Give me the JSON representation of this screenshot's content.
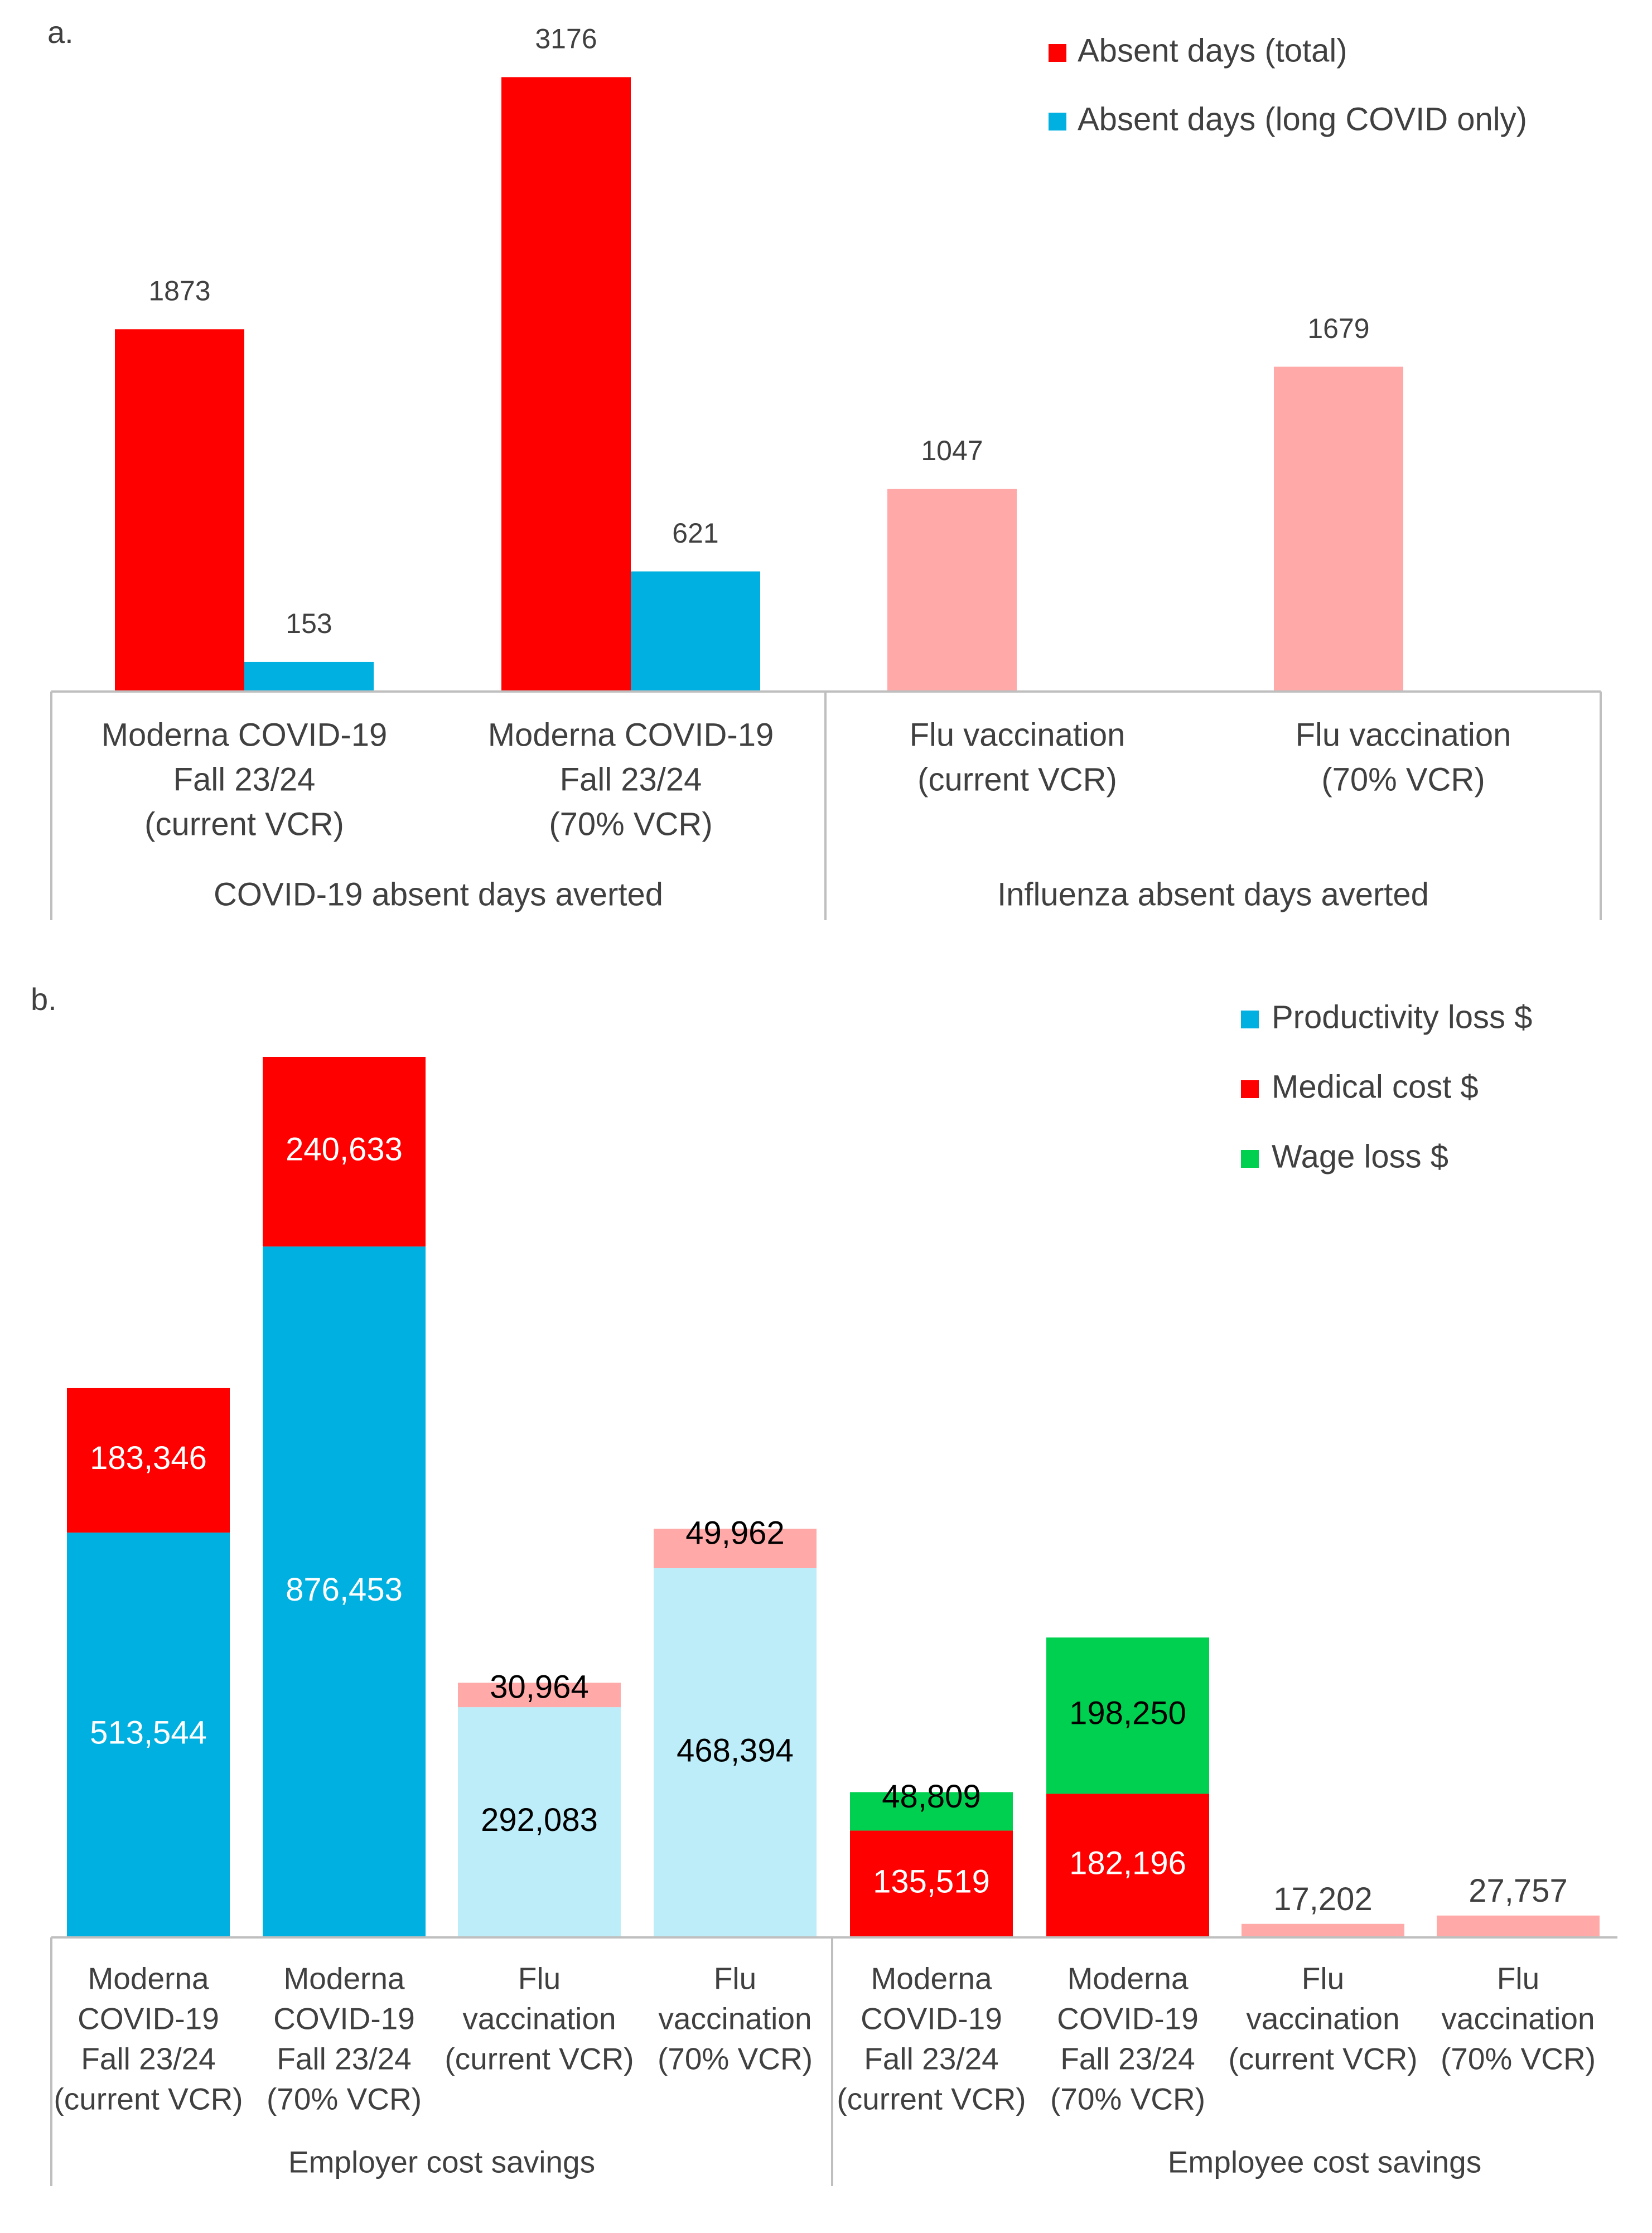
{
  "colors": {
    "red": "#FF0000",
    "blue": "#00B0E0",
    "pink": "#FFA9A9",
    "lightblue": "#BDEDF9",
    "green": "#00D050",
    "axis": "#BFBFBF",
    "text": "#404040",
    "white": "#FFFFFF",
    "black": "#000000"
  },
  "chart_data": [
    {
      "panel_label": "a.",
      "type": "bar",
      "title": "",
      "legend": [
        {
          "label": "Absent days (total)",
          "color": "#FF0000"
        },
        {
          "label": "Absent days (long COVID only)",
          "color": "#00B0E0"
        }
      ],
      "legend_position": "top-right",
      "groups": [
        {
          "label": "COVID-19 absent days averted",
          "categories": [
            {
              "label_lines": [
                "Moderna COVID-19",
                "Fall 23/24",
                "(current VCR)"
              ],
              "bars": [
                {
                  "series": "Absent days (total)",
                  "value": 1873,
                  "label": "1873",
                  "color": "#FF0000"
                },
                {
                  "series": "Absent days (long COVID only)",
                  "value": 153,
                  "label": "153",
                  "color": "#00B0E0"
                }
              ]
            },
            {
              "label_lines": [
                "Moderna COVID-19",
                "Fall 23/24",
                "(70% VCR)"
              ],
              "bars": [
                {
                  "series": "Absent days (total)",
                  "value": 3176,
                  "label": "3176",
                  "color": "#FF0000"
                },
                {
                  "series": "Absent days (long COVID only)",
                  "value": 621,
                  "label": "621",
                  "color": "#00B0E0"
                }
              ]
            }
          ]
        },
        {
          "label": "Influenza absent days averted",
          "categories": [
            {
              "label_lines": [
                "Flu vaccination",
                "(current VCR)"
              ],
              "bars": [
                {
                  "series": "Absent days (total)",
                  "value": 1047,
                  "label": "1047",
                  "color": "#FFA9A9"
                }
              ]
            },
            {
              "label_lines": [
                "Flu vaccination",
                "(70% VCR)"
              ],
              "bars": [
                {
                  "series": "Absent days (total)",
                  "value": 1679,
                  "label": "1679",
                  "color": "#FFA9A9"
                }
              ]
            }
          ]
        }
      ],
      "ylim": [
        0,
        3200
      ],
      "grid": false
    },
    {
      "panel_label": "b.",
      "type": "bar",
      "stacked": true,
      "title": "",
      "legend": [
        {
          "label": "Productivity loss $",
          "color": "#00B0E0"
        },
        {
          "label": "Medical cost $",
          "color": "#FF0000"
        },
        {
          "label": "Wage loss $",
          "color": "#00D050"
        }
      ],
      "legend_position": "top-right",
      "groups": [
        {
          "label": "Employer cost savings",
          "categories": [
            {
              "label_lines": [
                "Moderna",
                "COVID-19",
                "Fall 23/24",
                "(current VCR)"
              ],
              "segments": [
                {
                  "series": "Productivity loss $",
                  "value": 513544,
                  "label": "513,544",
                  "color": "#00B0E0",
                  "label_color": "#FFFFFF",
                  "label_pos": "inside"
                },
                {
                  "series": "Medical cost $",
                  "value": 183346,
                  "label": "183,346",
                  "color": "#FF0000",
                  "label_color": "#FFFFFF",
                  "label_pos": "inside"
                }
              ]
            },
            {
              "label_lines": [
                "Moderna",
                "COVID-19",
                "Fall 23/24",
                "(70% VCR)"
              ],
              "segments": [
                {
                  "series": "Productivity loss $",
                  "value": 876453,
                  "label": "876,453",
                  "color": "#00B0E0",
                  "label_color": "#FFFFFF",
                  "label_pos": "inside"
                },
                {
                  "series": "Medical cost $",
                  "value": 240633,
                  "label": "240,633",
                  "color": "#FF0000",
                  "label_color": "#FFFFFF",
                  "label_pos": "inside"
                }
              ]
            },
            {
              "label_lines": [
                "Flu",
                "vaccination",
                "(current VCR)"
              ],
              "segments": [
                {
                  "series": "Productivity loss $",
                  "value": 292083,
                  "label": "292,083",
                  "color": "#BDEDF9",
                  "label_color": "#000000",
                  "label_pos": "inside"
                },
                {
                  "series": "Medical cost $",
                  "value": 30964,
                  "label": "30,964",
                  "color": "#FFA9A9",
                  "label_color": "#000000",
                  "label_pos": "inside"
                }
              ]
            },
            {
              "label_lines": [
                "Flu",
                "vaccination",
                "(70% VCR)"
              ],
              "segments": [
                {
                  "series": "Productivity loss $",
                  "value": 468394,
                  "label": "468,394",
                  "color": "#BDEDF9",
                  "label_color": "#000000",
                  "label_pos": "inside"
                },
                {
                  "series": "Medical cost $",
                  "value": 49962,
                  "label": "49,962",
                  "color": "#FFA9A9",
                  "label_color": "#000000",
                  "label_pos": "inside"
                }
              ]
            }
          ]
        },
        {
          "label": "Employee cost savings",
          "categories": [
            {
              "label_lines": [
                "Moderna",
                "COVID-19",
                "Fall 23/24",
                "(current VCR)"
              ],
              "segments": [
                {
                  "series": "Medical cost $",
                  "value": 135519,
                  "label": "135,519",
                  "color": "#FF0000",
                  "label_color": "#FFFFFF",
                  "label_pos": "inside"
                },
                {
                  "series": "Wage loss $",
                  "value": 48809,
                  "label": "48,809",
                  "color": "#00D050",
                  "label_color": "#000000",
                  "label_pos": "inside"
                }
              ]
            },
            {
              "label_lines": [
                "Moderna",
                "COVID-19",
                "Fall 23/24",
                "(70% VCR)"
              ],
              "segments": [
                {
                  "series": "Medical cost $",
                  "value": 182196,
                  "label": "182,196",
                  "color": "#FF0000",
                  "label_color": "#FFFFFF",
                  "label_pos": "inside"
                },
                {
                  "series": "Wage loss $",
                  "value": 198250,
                  "label": "198,250",
                  "color": "#00D050",
                  "label_color": "#000000",
                  "label_pos": "inside"
                }
              ]
            },
            {
              "label_lines": [
                "Flu",
                "vaccination",
                "(current VCR)"
              ],
              "segments": [
                {
                  "series": "Medical cost $",
                  "value": 17202,
                  "label": "17,202",
                  "color": "#FFA9A9",
                  "label_color": "#404040",
                  "label_pos": "above"
                }
              ]
            },
            {
              "label_lines": [
                "Flu",
                "vaccination",
                "(70% VCR)"
              ],
              "segments": [
                {
                  "series": "Medical cost $",
                  "value": 27757,
                  "label": "27,757",
                  "color": "#FFA9A9",
                  "label_color": "#404040",
                  "label_pos": "above"
                }
              ]
            }
          ]
        }
      ],
      "ylim": [
        0,
        1117086
      ],
      "grid": false
    }
  ]
}
